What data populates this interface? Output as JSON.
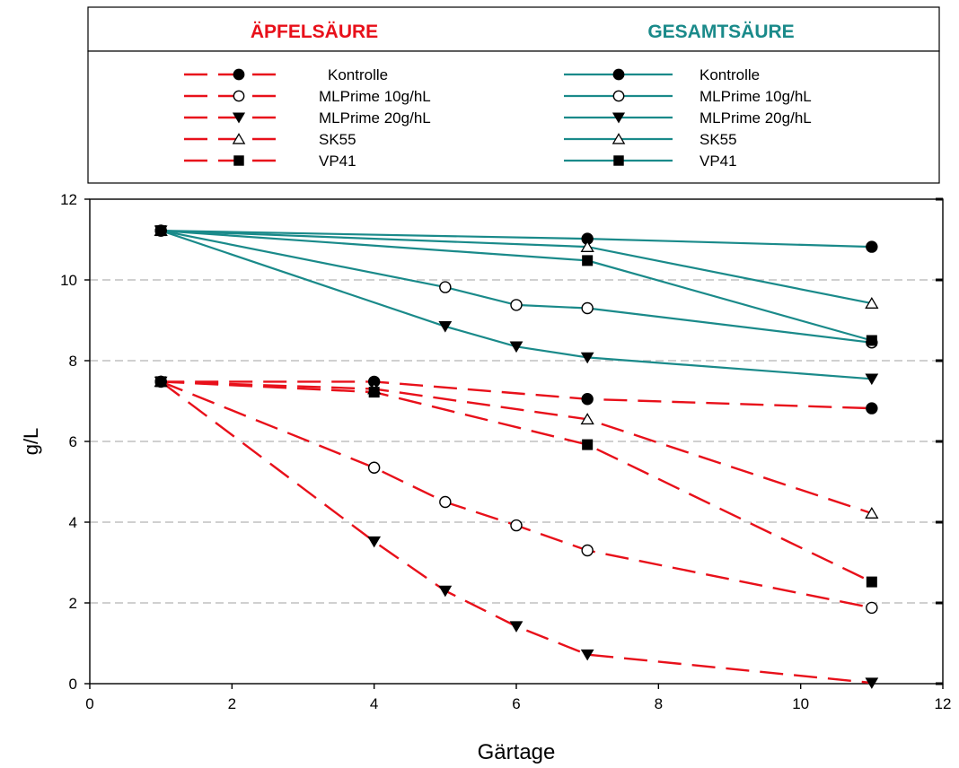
{
  "legend": {
    "left_title": "ÄPFELSÄURE",
    "right_title": "GESAMTSÄURE",
    "left_title_color": "#e8101a",
    "right_title_color": "#1a8a8a",
    "entries": [
      "Kontrolle",
      "MLPrime 10g/hL",
      "MLPrime 20g/hL",
      "SK55",
      "VP41"
    ]
  },
  "chart_data": {
    "type": "line",
    "xlabel": "Gärtage",
    "ylabel": "g/L",
    "xlim": [
      0,
      12
    ],
    "ylim": [
      0,
      12
    ],
    "xticks": [
      0,
      2,
      4,
      6,
      8,
      10,
      12
    ],
    "yticks": [
      0,
      2,
      4,
      6,
      8,
      10,
      12
    ],
    "grid": "horizontal dashed",
    "colors": {
      "malic": "#e8101a",
      "total": "#1a8a8a"
    },
    "series": [
      {
        "group": "ÄPFELSÄURE",
        "name": "Kontrolle",
        "marker": "filled-circle",
        "style": "dashed",
        "points": [
          [
            1,
            7.48
          ],
          [
            4,
            7.48
          ],
          [
            7,
            7.05
          ],
          [
            11,
            6.82
          ]
        ]
      },
      {
        "group": "ÄPFELSÄURE",
        "name": "MLPrime 10g/hL",
        "marker": "open-circle",
        "style": "dashed",
        "points": [
          [
            1,
            7.48
          ],
          [
            4,
            5.35
          ],
          [
            5,
            4.5
          ],
          [
            6,
            3.92
          ],
          [
            7,
            3.3
          ],
          [
            11,
            1.88
          ]
        ]
      },
      {
        "group": "ÄPFELSÄURE",
        "name": "MLPrime 20g/hL",
        "marker": "filled-triangle-down",
        "style": "dashed",
        "points": [
          [
            1,
            7.48
          ],
          [
            4,
            3.52
          ],
          [
            5,
            2.3
          ],
          [
            6,
            1.42
          ],
          [
            7,
            0.72
          ],
          [
            11,
            0.02
          ]
        ]
      },
      {
        "group": "ÄPFELSÄURE",
        "name": "SK55",
        "marker": "open-triangle-up",
        "style": "dashed",
        "points": [
          [
            1,
            7.48
          ],
          [
            4,
            7.3
          ],
          [
            7,
            6.55
          ],
          [
            11,
            4.22
          ]
        ]
      },
      {
        "group": "ÄPFELSÄURE",
        "name": "VP41",
        "marker": "filled-square",
        "style": "dashed",
        "points": [
          [
            1,
            7.48
          ],
          [
            4,
            7.22
          ],
          [
            7,
            5.92
          ],
          [
            11,
            2.52
          ]
        ]
      },
      {
        "group": "GESAMTSÄURE",
        "name": "Kontrolle",
        "marker": "filled-circle",
        "style": "solid",
        "points": [
          [
            1,
            11.22
          ],
          [
            7,
            11.02
          ],
          [
            11,
            10.82
          ]
        ]
      },
      {
        "group": "GESAMTSÄURE",
        "name": "MLPrime 10g/hL",
        "marker": "open-circle",
        "style": "solid",
        "points": [
          [
            1,
            11.22
          ],
          [
            5,
            9.82
          ],
          [
            6,
            9.38
          ],
          [
            7,
            9.3
          ],
          [
            11,
            8.45
          ]
        ]
      },
      {
        "group": "GESAMTSÄURE",
        "name": "MLPrime 20g/hL",
        "marker": "filled-triangle-down",
        "style": "solid",
        "points": [
          [
            1,
            11.22
          ],
          [
            5,
            8.85
          ],
          [
            6,
            8.35
          ],
          [
            7,
            8.08
          ],
          [
            11,
            7.55
          ]
        ]
      },
      {
        "group": "GESAMTSÄURE",
        "name": "SK55",
        "marker": "open-triangle-up",
        "style": "solid",
        "points": [
          [
            1,
            11.22
          ],
          [
            7,
            10.82
          ],
          [
            11,
            9.42
          ]
        ]
      },
      {
        "group": "GESAMTSÄURE",
        "name": "VP41",
        "marker": "filled-square",
        "style": "solid",
        "points": [
          [
            1,
            11.22
          ],
          [
            7,
            10.48
          ],
          [
            11,
            8.5
          ]
        ]
      }
    ]
  }
}
